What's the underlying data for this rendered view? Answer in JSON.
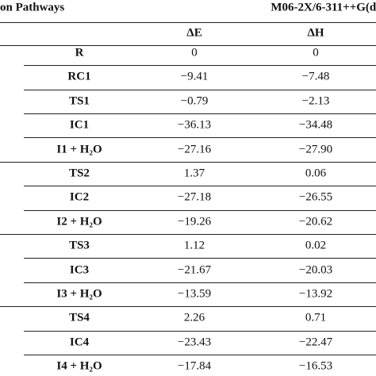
{
  "header": {
    "left": "on Pathways",
    "right": "M06-2X/6-311++G(d,"
  },
  "table": {
    "columns": [
      "ΔE",
      "ΔH"
    ],
    "rows": [
      [
        "R",
        "0",
        "0"
      ],
      [
        "RC1",
        "−9.41",
        "−7.48"
      ],
      [
        "TS1",
        "−0.79",
        "−2.13"
      ],
      [
        "IC1",
        "−36.13",
        "−34.48"
      ],
      [
        "I1 + H₂O",
        "−27.16",
        "−27.90"
      ],
      [
        "TS2",
        "1.37",
        "0.06"
      ],
      [
        "IC2",
        "−27.18",
        "−26.55"
      ],
      [
        "I2 + H₂O",
        "−19.26",
        "−20.62"
      ],
      [
        "TS3",
        "1.12",
        "0.02"
      ],
      [
        "IC3",
        "−21.67",
        "−20.03"
      ],
      [
        "I3 + H₂O",
        "−13.59",
        "−13.92"
      ],
      [
        "TS4",
        "2.26",
        "0.71"
      ],
      [
        "IC4",
        "−23.43",
        "−22.47"
      ],
      [
        "I4 + H₂O",
        "−17.84",
        "−16.53"
      ]
    ]
  }
}
